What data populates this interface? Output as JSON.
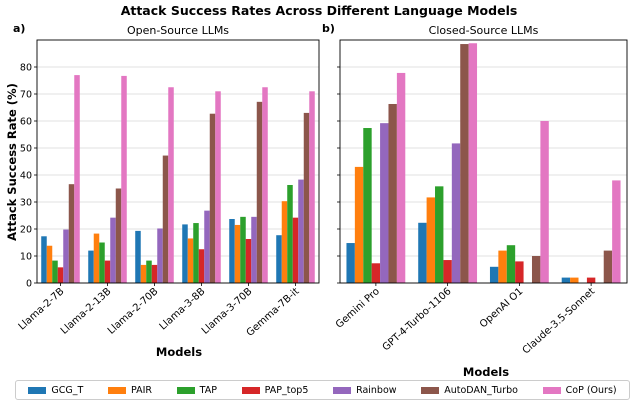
{
  "figure": {
    "title": "Attack Success Rates Across Different Language Models",
    "panel_a_label": "a)",
    "panel_b_label": "b)",
    "ylabel": "Attack Success Rate (%)"
  },
  "legend": [
    {
      "name": "GCG_T",
      "color": "#1f77b4"
    },
    {
      "name": "PAIR",
      "color": "#ff7f0e"
    },
    {
      "name": "TAP",
      "color": "#2ca02c"
    },
    {
      "name": "PAP_top5",
      "color": "#d62728"
    },
    {
      "name": "Rainbow",
      "color": "#9467bd"
    },
    {
      "name": "AutoDAN_Turbo",
      "color": "#8c564b"
    },
    {
      "name": "CoP (Ours)",
      "color": "#e377c2"
    }
  ],
  "chart_data": [
    {
      "type": "bar",
      "title": "Open-Source LLMs",
      "xlabel": "Models",
      "ylabel": "Attack Success Rate (%)",
      "ylim": [
        0,
        90
      ],
      "yticks": [
        0,
        10,
        20,
        30,
        40,
        50,
        60,
        70,
        80
      ],
      "grid": true,
      "categories": [
        "Llama-2-7B",
        "Llama-2-13B",
        "Llama-2-70B",
        "Llama-3-8B",
        "Llama-3-70B",
        "Gemma-7B-it"
      ],
      "series": [
        {
          "name": "GCG_T",
          "color": "#1f77b4",
          "values": [
            17.3,
            12.0,
            19.3,
            21.7,
            23.7,
            17.7
          ]
        },
        {
          "name": "PAIR",
          "color": "#ff7f0e",
          "values": [
            13.8,
            18.3,
            6.7,
            16.5,
            21.5,
            30.3
          ]
        },
        {
          "name": "TAP",
          "color": "#2ca02c",
          "values": [
            8.3,
            15.0,
            8.3,
            22.2,
            24.5,
            36.3
          ]
        },
        {
          "name": "PAP_top5",
          "color": "#d62728",
          "values": [
            5.8,
            8.3,
            6.7,
            12.5,
            16.3,
            24.2
          ]
        },
        {
          "name": "Rainbow",
          "color": "#9467bd",
          "values": [
            19.8,
            24.2,
            20.2,
            26.8,
            24.5,
            38.3
          ]
        },
        {
          "name": "AutoDAN_Turbo",
          "color": "#8c564b",
          "values": [
            36.6,
            35.0,
            47.2,
            62.7,
            67.1,
            63.0
          ]
        },
        {
          "name": "CoP (Ours)",
          "color": "#e377c2",
          "values": [
            77.0,
            76.7,
            72.5,
            71.0,
            72.5,
            71.0
          ]
        }
      ]
    },
    {
      "type": "bar",
      "title": "Closed-Source LLMs",
      "xlabel": "Models",
      "ylim": [
        0,
        90
      ],
      "yticks": [
        0,
        10,
        20,
        30,
        40,
        50,
        60,
        70,
        80
      ],
      "grid": true,
      "categories": [
        "Gemini Pro",
        "GPT-4-Turbo-1106",
        "OpenAI O1",
        "Claude-3.5-Sonnet"
      ],
      "series": [
        {
          "name": "GCG_T",
          "color": "#1f77b4",
          "values": [
            14.8,
            22.3,
            6.0,
            2.0
          ]
        },
        {
          "name": "PAIR",
          "color": "#ff7f0e",
          "values": [
            43.0,
            31.7,
            12.0,
            2.0
          ]
        },
        {
          "name": "TAP",
          "color": "#2ca02c",
          "values": [
            57.4,
            35.8,
            14.0,
            0.0
          ]
        },
        {
          "name": "PAP_top5",
          "color": "#d62728",
          "values": [
            7.3,
            8.5,
            8.0,
            2.0
          ]
        },
        {
          "name": "Rainbow",
          "color": "#9467bd",
          "values": [
            59.2,
            51.7,
            0.0,
            0.0
          ]
        },
        {
          "name": "AutoDAN_Turbo",
          "color": "#8c564b",
          "values": [
            66.3,
            88.5,
            10.0,
            12.0
          ]
        },
        {
          "name": "CoP (Ours)",
          "color": "#e377c2",
          "values": [
            77.8,
            88.8,
            60.0,
            38.0
          ]
        }
      ]
    }
  ]
}
